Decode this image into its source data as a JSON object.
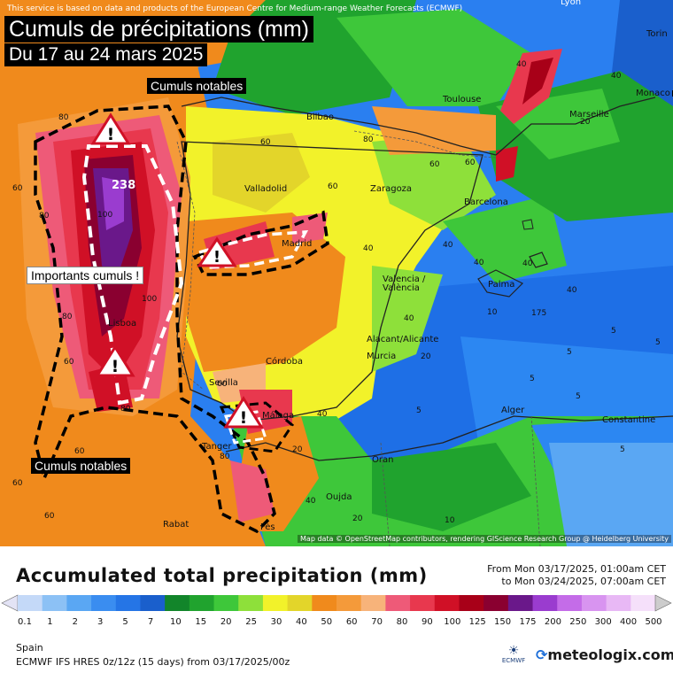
{
  "header": {
    "notice": "This service is based on data and products of the European Centre for Medium-range Weather Forecasts (ECMWF)",
    "title": "Cumuls de précipitations (mm)",
    "subtitle": "Du 17 au 24 mars 2025"
  },
  "annotations": {
    "cumuls_notables_top": "Cumuls notables",
    "cumuls_notables_bottom": "Cumuls notables",
    "importants_cumuls": "Importants cumuls !",
    "peak_value": "238"
  },
  "cities": [
    {
      "name": "Lyon"
    },
    {
      "name": "Torin"
    },
    {
      "name": "Monaco"
    },
    {
      "name": "Toulouse"
    },
    {
      "name": "Marseille"
    },
    {
      "name": "Bilbao"
    },
    {
      "name": "Valladolid"
    },
    {
      "name": "Zaragoza"
    },
    {
      "name": "Barcelona"
    },
    {
      "name": "Madrid"
    },
    {
      "name": "Valencia / València"
    },
    {
      "name": "Palma"
    },
    {
      "name": "Lisboa"
    },
    {
      "name": "Córdoba"
    },
    {
      "name": "Sevilla"
    },
    {
      "name": "Alacant/Alicante"
    },
    {
      "name": "Murcia"
    },
    {
      "name": "Málaga"
    },
    {
      "name": "Tanger"
    },
    {
      "name": "Alger"
    },
    {
      "name": "Constantine"
    },
    {
      "name": "Oran"
    },
    {
      "name": "Oujda"
    },
    {
      "name": "Rabat"
    },
    {
      "name": "Fès"
    }
  ],
  "attribution": "Map data © OpenStreetMap contributors, rendering GIScience Research Group @ Heidelberg University",
  "legend": {
    "title": "Accumulated total precipitation (mm)",
    "period_from": "From Mon 03/17/2025, 01:00am CET",
    "period_to": "to Mon 03/24/2025, 07:00am CET",
    "colors": [
      "#e3e3f5",
      "#c4d9f8",
      "#8cc1f5",
      "#5aa7f3",
      "#3a8df0",
      "#2575e6",
      "#1a5fcc",
      "#12852a",
      "#20a32e",
      "#3ec73a",
      "#8ee03a",
      "#f2f22a",
      "#e3d52a",
      "#f08a1c",
      "#f49a3a",
      "#f7b37a",
      "#ee5a78",
      "#e8384e",
      "#d01026",
      "#a80018",
      "#8a0030",
      "#6a188a",
      "#9a3ccf",
      "#c46ce8",
      "#d894f0",
      "#e8b8f5",
      "#f5e0fa",
      "#cccccc"
    ],
    "ticks": [
      "0.1",
      "1",
      "2",
      "3",
      "5",
      "7",
      "10",
      "15",
      "20",
      "25",
      "30",
      "40",
      "50",
      "60",
      "70",
      "80",
      "90",
      "100",
      "125",
      "150",
      "175",
      "200",
      "250",
      "300",
      "400",
      "500"
    ]
  },
  "footer": {
    "region": "Spain",
    "model": "ECMWF IFS HRES 0z/12z (15 days) from  03/17/2025/00z",
    "ecmwf_logo": "ECMWF",
    "brand": "meteologix.com"
  }
}
